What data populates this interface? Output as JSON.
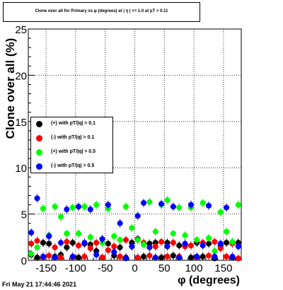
{
  "title": "Clone  over all for Primary vs φ (degrees) at | η | <= 1.0 at pT  > 0.11",
  "footer": "Fri May 21 17:44:46 2021",
  "chart_data": {
    "type": "scatter",
    "xlabel": "φ (degrees)",
    "ylabel": "Clone  over all (%)",
    "xlim": [
      -180,
      180
    ],
    "ylim": [
      0,
      25
    ],
    "xticks": [
      -150,
      -100,
      -50,
      0,
      50,
      100,
      150
    ],
    "yticks": [
      0,
      5,
      10,
      15,
      20,
      25
    ],
    "grid": true,
    "legend_placement": "middle-left",
    "x": [
      -175,
      -165,
      -155,
      -145,
      -135,
      -125,
      -115,
      -105,
      -95,
      -85,
      -75,
      -65,
      -55,
      -45,
      -35,
      -25,
      -15,
      -5,
      5,
      15,
      25,
      35,
      45,
      55,
      65,
      75,
      85,
      95,
      105,
      115,
      125,
      135,
      145,
      155,
      165,
      175
    ],
    "series": [
      {
        "name": "(+) with pT/|q| > 0.1",
        "color": "#000000",
        "values": [
          0.6,
          0.3,
          1.9,
          1.8,
          0.4,
          0.6,
          1.4,
          1.9,
          0.3,
          1.8,
          1.7,
          1.0,
          0.3,
          1.8,
          0.5,
          1.4,
          0.3,
          1.9,
          2.3,
          0.4,
          1.8,
          1.9,
          0.3,
          1.9,
          0.5,
          1.6,
          1.7,
          0.3,
          1.9,
          0.4,
          1.8,
          0.2,
          1.6,
          1.9,
          0.3,
          1.9
        ]
      },
      {
        "name": "(-) with pT/|q| > 0.1",
        "color": "#ff0000",
        "values": [
          1.8,
          2.1,
          0.3,
          0.5,
          1.4,
          0.3,
          2.0,
          0.3,
          1.6,
          0.4,
          1.3,
          1.9,
          0.3,
          1.1,
          1.5,
          0.4,
          2.2,
          1.5,
          0.3,
          1.9,
          0.5,
          1.5,
          2.0,
          0.4,
          1.9,
          0.4,
          1.5,
          1.6,
          0.3,
          1.9,
          0.5,
          2.0,
          1.3,
          0.4,
          1.8,
          0.2
        ]
      },
      {
        "name": "(+) with pT/|q| > 0.5",
        "color": "#00ff00",
        "values": [
          0.7,
          1.4,
          5.6,
          2.7,
          5.8,
          4.7,
          2.9,
          5.7,
          2.9,
          5.8,
          2.5,
          6.0,
          1.9,
          5.6,
          2.6,
          2.2,
          5.8,
          3.5,
          2.2,
          1.7,
          6.3,
          3.1,
          6.0,
          6.5,
          2.9,
          5.7,
          2.7,
          5.7,
          2.2,
          6.2,
          2.4,
          1.0,
          5.2,
          3.1,
          2.0,
          6.0
        ]
      },
      {
        "name": "(-) with pT/|q| > 0.5",
        "color": "#0000ff",
        "values": [
          3.0,
          6.7,
          0.4,
          2.6,
          0.3,
          1.9,
          5.5,
          0.4,
          5.8,
          1.9,
          5.5,
          0.6,
          2.3,
          6.0,
          0.9,
          4.0,
          0.2,
          1.5,
          4.8,
          6.2,
          1.4,
          0.3,
          6.1,
          1.5,
          5.8,
          0.3,
          1.8,
          6.0,
          0.4,
          1.6,
          5.9,
          0.4,
          1.8,
          5.7,
          0.4,
          1.5
        ]
      }
    ]
  }
}
